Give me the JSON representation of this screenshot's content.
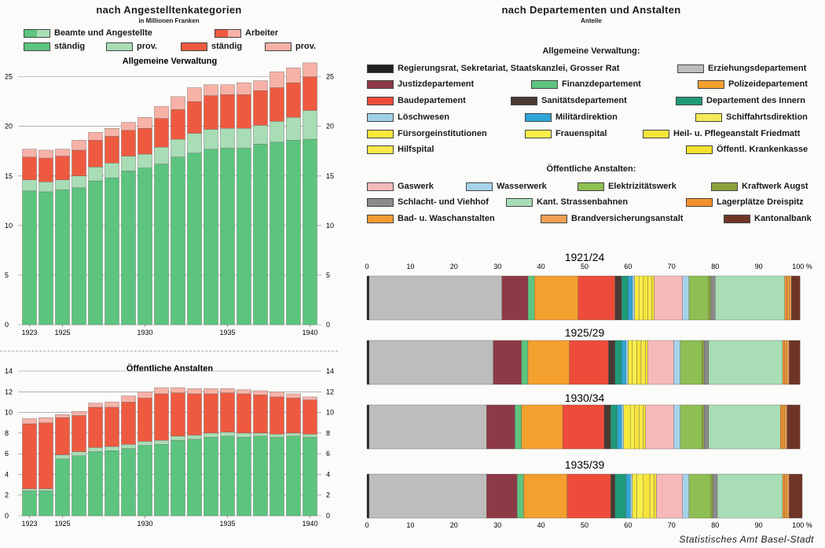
{
  "left": {
    "title": "nach Angestelltenkategorien",
    "subtitle": "in Millionen Franken",
    "legend_header": [
      {
        "label": "Beamte und Angestellte",
        "color": "#5cc47e",
        "key": "beamte"
      },
      {
        "label": "Arbeiter",
        "color": "#ee5a3f",
        "key": "arbeiter"
      }
    ],
    "legend_items": [
      {
        "label": "ständig",
        "color": "#5cc47e"
      },
      {
        "label": "prov.",
        "color": "#a8ddb5"
      },
      {
        "label": "ständig",
        "color": "#ee5a3f"
      },
      {
        "label": "prov.",
        "color": "#f7b2a8"
      }
    ]
  },
  "right": {
    "title": "nach Departementen und Anstalten",
    "subtitle": "Anteile",
    "section1_title": "Allgemeine Verwaltung:",
    "section2_title": "Öffentliche Anstalten:",
    "legend1": [
      {
        "label": "Regierungsrat, Sekretariat, Staatskanzlei, Grosser Rat",
        "color": "#222222"
      },
      {
        "label": "Erziehungsdepartement",
        "color": "#bdbdbd"
      },
      {
        "label": "Justizdepartement",
        "color": "#8e3a46"
      },
      {
        "label": "Finanzdepartement",
        "color": "#5cc47e"
      },
      {
        "label": "Polizeidepartement",
        "color": "#f4a02e"
      },
      {
        "label": "Baudepartement",
        "color": "#ee4c3a"
      },
      {
        "label": "Sanitätsdepartement",
        "color": "#4a3a33"
      },
      {
        "label": "Departement des Innern",
        "color": "#1f9a78"
      },
      {
        "label": "Löschwesen",
        "color": "#9fd0e8"
      },
      {
        "label": "Militärdirektion",
        "color": "#2fa6d8"
      },
      {
        "label": "Schiffahrtsdirektion",
        "color": "#f4ea5a"
      },
      {
        "label": "Fürsorgeinstitutionen",
        "color": "#f7e83a"
      },
      {
        "label": "Frauenspital",
        "color": "#f9ee4a"
      },
      {
        "label": "Heil- u. Pflegeanstalt Friedmatt",
        "color": "#f6e43a"
      },
      {
        "label": "Hilfspital",
        "color": "#f8e84a"
      },
      {
        "label": "Öffentl. Krankenkasse",
        "color": "#f5e12e"
      }
    ],
    "legend2": [
      {
        "label": "Gaswerk",
        "color": "#f6b9b9"
      },
      {
        "label": "Wasserwerk",
        "color": "#a6d2ea"
      },
      {
        "label": "Elektrizitätswerk",
        "color": "#8fbe52"
      },
      {
        "label": "Kraftwerk Augst",
        "color": "#8ba33a"
      },
      {
        "label": "Schlacht- und Viehhof",
        "color": "#8a8a8a"
      },
      {
        "label": "Kant. Strassenbahnen",
        "color": "#a8ddb5"
      },
      {
        "label": "Lagerplätze Dreispitz",
        "color": "#f4902e"
      },
      {
        "label": "Bad- u. Waschanstalten",
        "color": "#f49a30"
      },
      {
        "label": "Brandversicherungsanstalt",
        "color": "#f0a050"
      },
      {
        "label": "Kantonalbank",
        "color": "#6e3526"
      }
    ],
    "credit": "Statistisches Amt Basel-Stadt"
  },
  "chart_data": [
    {
      "type": "bar",
      "stacked": true,
      "title": "Allgemeine Verwaltung",
      "categories": [
        "1923",
        "1924",
        "1925",
        "1926",
        "1927",
        "1928",
        "1929",
        "1930",
        "1931",
        "1932",
        "1933",
        "1934",
        "1935",
        "1936",
        "1937",
        "1938",
        "1939",
        "1940"
      ],
      "x_tick_labels": [
        "1923",
        "1925",
        "1930",
        "1935",
        "1940"
      ],
      "ylim": [
        0,
        26
      ],
      "y_ticks": [
        0,
        5,
        10,
        15,
        20,
        25
      ],
      "series": [
        {
          "name": "Beamte und Angestellte ständig",
          "color": "#5cc47e",
          "values": [
            13.5,
            13.4,
            13.6,
            13.8,
            14.5,
            14.8,
            15.5,
            15.8,
            16.2,
            16.9,
            17.3,
            17.7,
            17.8,
            17.8,
            18.2,
            18.4,
            18.6,
            18.7
          ]
        },
        {
          "name": "Beamte und Angestellte prov.",
          "color": "#a8ddb5",
          "values": [
            1.1,
            1.0,
            1.0,
            1.2,
            1.4,
            1.5,
            1.5,
            1.4,
            1.7,
            1.8,
            2.0,
            2.0,
            2.0,
            2.0,
            1.9,
            2.1,
            2.3,
            2.9
          ]
        },
        {
          "name": "Arbeiter ständig",
          "color": "#ee5a3f",
          "values": [
            2.3,
            2.4,
            2.4,
            2.6,
            2.7,
            2.7,
            2.6,
            2.6,
            2.9,
            3.0,
            3.2,
            3.4,
            3.4,
            3.4,
            3.5,
            3.4,
            3.5,
            3.4
          ]
        },
        {
          "name": "Arbeiter prov.",
          "color": "#f7b2a8",
          "values": [
            0.8,
            0.8,
            0.7,
            1.0,
            0.8,
            0.8,
            0.8,
            1.1,
            1.2,
            1.3,
            1.4,
            1.1,
            1.0,
            1.2,
            1.0,
            1.6,
            1.5,
            1.4
          ]
        }
      ]
    },
    {
      "type": "bar",
      "stacked": true,
      "title": "Öffentliche Anstalten",
      "categories": [
        "1923",
        "1924",
        "1925",
        "1926",
        "1927",
        "1928",
        "1929",
        "1930",
        "1931",
        "1932",
        "1933",
        "1934",
        "1935",
        "1936",
        "1937",
        "1938",
        "1939",
        "1940"
      ],
      "x_tick_labels": [
        "1923",
        "1925",
        "1930",
        "1935",
        "1940"
      ],
      "ylim": [
        0,
        14
      ],
      "y_ticks": [
        0,
        2,
        4,
        6,
        8,
        10,
        12,
        14
      ],
      "series": [
        {
          "name": "Beamte und Angestellte ständig",
          "color": "#5cc47e",
          "values": [
            2.4,
            2.4,
            5.5,
            5.8,
            6.2,
            6.3,
            6.5,
            6.8,
            6.9,
            7.3,
            7.4,
            7.6,
            7.7,
            7.6,
            7.7,
            7.6,
            7.7,
            7.6
          ]
        },
        {
          "name": "Beamte und Angestellte prov.",
          "color": "#a8ddb5",
          "values": [
            0.2,
            0.2,
            0.4,
            0.4,
            0.4,
            0.4,
            0.4,
            0.4,
            0.4,
            0.4,
            0.4,
            0.4,
            0.4,
            0.4,
            0.3,
            0.3,
            0.3,
            0.3
          ]
        },
        {
          "name": "Arbeiter ständig",
          "color": "#ee5a3f",
          "values": [
            6.3,
            6.4,
            3.6,
            3.5,
            3.9,
            3.8,
            4.1,
            4.2,
            4.5,
            4.2,
            4.0,
            3.8,
            3.8,
            3.8,
            3.7,
            3.6,
            3.4,
            3.3
          ]
        },
        {
          "name": "Arbeiter prov.",
          "color": "#f7b2a8",
          "values": [
            0.5,
            0.5,
            0.3,
            0.4,
            0.4,
            0.5,
            0.6,
            0.6,
            0.6,
            0.5,
            0.5,
            0.5,
            0.4,
            0.4,
            0.4,
            0.5,
            0.4,
            0.3
          ]
        }
      ]
    },
    {
      "type": "bar",
      "stacked": true,
      "orientation": "horizontal",
      "unit": "%",
      "x_ticks": [
        0,
        10,
        20,
        30,
        40,
        50,
        60,
        70,
        80,
        90,
        100
      ],
      "xlim": [
        0,
        100
      ],
      "periods": [
        {
          "label": "1921/24",
          "segments": [
            {
              "name": "Regierungsrat, Sekretariat, Staatskanzlei, Grosser Rat",
              "value": 0.5
            },
            {
              "name": "Erziehungsdepartement",
              "value": 30.5
            },
            {
              "name": "Justizdepartement",
              "value": 6.0
            },
            {
              "name": "Finanzdepartement",
              "value": 1.5
            },
            {
              "name": "Polizeidepartement",
              "value": 10.0
            },
            {
              "name": "Baudepartement",
              "value": 8.5
            },
            {
              "name": "Sanitätsdepartement",
              "value": 1.5
            },
            {
              "name": "Departement des Innern",
              "value": 1.5
            },
            {
              "name": "Militärdirektion",
              "value": 1.0
            },
            {
              "name": "Löschwesen",
              "value": 0.5
            },
            {
              "name": "Fürsorgeinstitutionen",
              "value": 1.0
            },
            {
              "name": "Frauenspital",
              "value": 1.0
            },
            {
              "name": "Heil- u. Pflegeanstalt Friedmatt",
              "value": 1.0
            },
            {
              "name": "Hilfspital",
              "value": 1.0
            },
            {
              "name": "Öffentl. Krankenkasse",
              "value": 0.5
            },
            {
              "name": "Gaswerk",
              "value": 6.5
            },
            {
              "name": "Wasserwerk",
              "value": 1.5
            },
            {
              "name": "Elektrizitätswerk",
              "value": 4.5
            },
            {
              "name": "Kraftwerk Augst",
              "value": 0.5
            },
            {
              "name": "Schlacht- und Viehhof",
              "value": 1.0
            },
            {
              "name": "Kant. Strassenbahnen",
              "value": 16.0
            },
            {
              "name": "Lagerplätze Dreispitz",
              "value": 0.5
            },
            {
              "name": "Bad- u. Waschanstalten",
              "value": 0.5
            },
            {
              "name": "Brandversicherungsanstalt",
              "value": 0.5
            },
            {
              "name": "Kantonalbank",
              "value": 2.0
            }
          ]
        },
        {
          "label": "1925/29",
          "segments": [
            {
              "name": "Regierungsrat, Sekretariat, Staatskanzlei, Grosser Rat",
              "value": 0.5
            },
            {
              "name": "Erziehungsdepartement",
              "value": 28.5
            },
            {
              "name": "Justizdepartement",
              "value": 6.5
            },
            {
              "name": "Finanzdepartement",
              "value": 1.5
            },
            {
              "name": "Polizeidepartement",
              "value": 9.5
            },
            {
              "name": "Baudepartement",
              "value": 9.0
            },
            {
              "name": "Sanitätsdepartement",
              "value": 1.5
            },
            {
              "name": "Departement des Innern",
              "value": 1.5
            },
            {
              "name": "Militärdirektion",
              "value": 1.0
            },
            {
              "name": "Löschwesen",
              "value": 0.5
            },
            {
              "name": "Fürsorgeinstitutionen",
              "value": 1.0
            },
            {
              "name": "Frauenspital",
              "value": 1.0
            },
            {
              "name": "Heil- u. Pflegeanstalt Friedmatt",
              "value": 1.0
            },
            {
              "name": "Hilfspital",
              "value": 1.0
            },
            {
              "name": "Öffentl. Krankenkasse",
              "value": 0.5
            },
            {
              "name": "Gaswerk",
              "value": 6.0
            },
            {
              "name": "Wasserwerk",
              "value": 1.5
            },
            {
              "name": "Elektrizitätswerk",
              "value": 5.0
            },
            {
              "name": "Kraftwerk Augst",
              "value": 0.5
            },
            {
              "name": "Schlacht- und Viehhof",
              "value": 1.0
            },
            {
              "name": "Kant. Strassenbahnen",
              "value": 17.0
            },
            {
              "name": "Lagerplätze Dreispitz",
              "value": 0.5
            },
            {
              "name": "Bad- u. Waschanstalten",
              "value": 0.5
            },
            {
              "name": "Brandversicherungsanstalt",
              "value": 0.5
            },
            {
              "name": "Kantonalbank",
              "value": 2.5
            }
          ]
        },
        {
          "label": "1930/34",
          "segments": [
            {
              "name": "Regierungsrat, Sekretariat, Staatskanzlei, Grosser Rat",
              "value": 0.5
            },
            {
              "name": "Erziehungsdepartement",
              "value": 27.0
            },
            {
              "name": "Justizdepartement",
              "value": 6.5
            },
            {
              "name": "Finanzdepartement",
              "value": 1.5
            },
            {
              "name": "Polizeidepartement",
              "value": 9.5
            },
            {
              "name": "Baudepartement",
              "value": 9.5
            },
            {
              "name": "Sanitätsdepartement",
              "value": 1.5
            },
            {
              "name": "Departement des Innern",
              "value": 1.5
            },
            {
              "name": "Militärdirektion",
              "value": 1.0
            },
            {
              "name": "Löschwesen",
              "value": 0.5
            },
            {
              "name": "Fürsorgeinstitutionen",
              "value": 1.5
            },
            {
              "name": "Frauenspital",
              "value": 1.0
            },
            {
              "name": "Heil- u. Pflegeanstalt Friedmatt",
              "value": 1.0
            },
            {
              "name": "Hilfspital",
              "value": 1.0
            },
            {
              "name": "Öffentl. Krankenkasse",
              "value": 0.5
            },
            {
              "name": "Gaswerk",
              "value": 6.5
            },
            {
              "name": "Wasserwerk",
              "value": 1.5
            },
            {
              "name": "Elektrizitätswerk",
              "value": 5.0
            },
            {
              "name": "Kraftwerk Augst",
              "value": 0.5
            },
            {
              "name": "Schlacht- und Viehhof",
              "value": 1.0
            },
            {
              "name": "Kant. Strassenbahnen",
              "value": 16.5
            },
            {
              "name": "Lagerplätze Dreispitz",
              "value": 0.5
            },
            {
              "name": "Bad- u. Waschanstalten",
              "value": 0.5
            },
            {
              "name": "Brandversicherungsanstalt",
              "value": 0.5
            },
            {
              "name": "Kantonalbank",
              "value": 3.0
            }
          ]
        },
        {
          "label": "1935/39",
          "segments": [
            {
              "name": "Regierungsrat, Sekretariat, Staatskanzlei, Grosser Rat",
              "value": 0.5
            },
            {
              "name": "Erziehungsdepartement",
              "value": 27.0
            },
            {
              "name": "Justizdepartement",
              "value": 7.0
            },
            {
              "name": "Finanzdepartement",
              "value": 1.5
            },
            {
              "name": "Polizeidepartement",
              "value": 10.0
            },
            {
              "name": "Baudepartement",
              "value": 10.0
            },
            {
              "name": "Sanitätsdepartement",
              "value": 1.0
            },
            {
              "name": "Departement des Innern",
              "value": 2.5
            },
            {
              "name": "Militärdirektion",
              "value": 1.0
            },
            {
              "name": "Löschwesen",
              "value": 0.5
            },
            {
              "name": "Fürsorgeinstitutionen",
              "value": 1.0
            },
            {
              "name": "Frauenspital",
              "value": 1.5
            },
            {
              "name": "Heil- u. Pflegeanstalt Friedmatt",
              "value": 1.5
            },
            {
              "name": "Hilfspital",
              "value": 1.0
            },
            {
              "name": "Öffentl. Krankenkasse",
              "value": 0.5
            },
            {
              "name": "Gaswerk",
              "value": 6.0
            },
            {
              "name": "Wasserwerk",
              "value": 1.5
            },
            {
              "name": "Elektrizitätswerk",
              "value": 5.0
            },
            {
              "name": "Kraftwerk Augst",
              "value": 0.5
            },
            {
              "name": "Schlacht- und Viehhof",
              "value": 1.0
            },
            {
              "name": "Kant. Strassenbahnen",
              "value": 15.0
            },
            {
              "name": "Lagerplätze Dreispitz",
              "value": 0.5
            },
            {
              "name": "Bad- u. Waschanstalten",
              "value": 0.5
            },
            {
              "name": "Brandversicherungsanstalt",
              "value": 0.5
            },
            {
              "name": "Kantonalbank",
              "value": 3.0
            }
          ]
        }
      ]
    }
  ]
}
